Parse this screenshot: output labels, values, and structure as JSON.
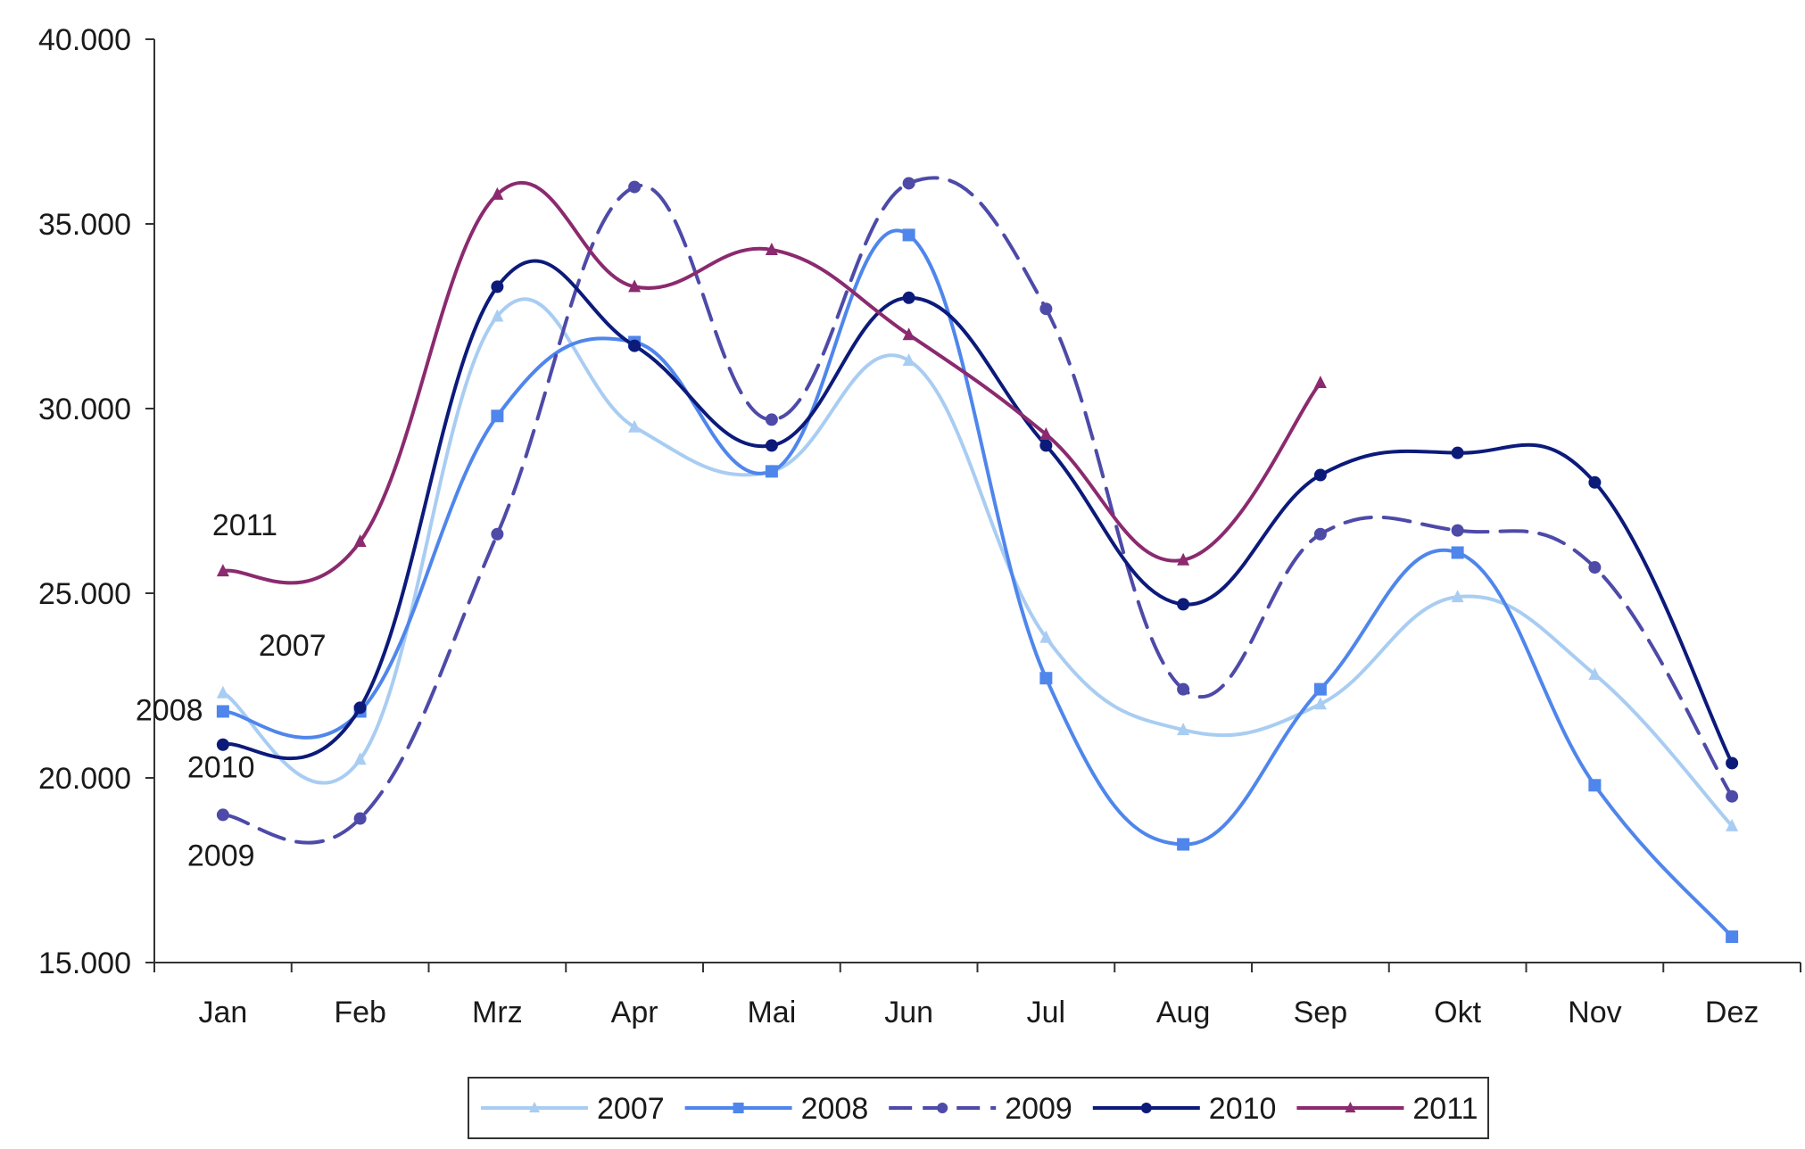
{
  "chart_data": {
    "type": "line",
    "title": "",
    "xlabel": "",
    "ylabel": "",
    "categories": [
      "Jan",
      "Feb",
      "Mrz",
      "Apr",
      "Mai",
      "Jun",
      "Jul",
      "Aug",
      "Sep",
      "Okt",
      "Nov",
      "Dez"
    ],
    "ylim": [
      15000,
      40000
    ],
    "yticks": [
      15000,
      20000,
      25000,
      30000,
      35000,
      40000
    ],
    "ytick_labels": [
      "15.000",
      "20.000",
      "25.000",
      "30.000",
      "35.000",
      "40.000"
    ],
    "grid": false,
    "smooth": true,
    "legend": {
      "position": "bottom",
      "boxed": true
    },
    "series": [
      {
        "name": "2007",
        "color": "#a9cdf2",
        "dash": false,
        "marker": "triangle",
        "tag": "2007",
        "values": [
          22300,
          20500,
          32500,
          29500,
          28300,
          31300,
          23800,
          21300,
          22000,
          24900,
          22800,
          18700
        ]
      },
      {
        "name": "2008",
        "color": "#4f86ec",
        "dash": false,
        "marker": "square",
        "tag": "2008",
        "values": [
          21800,
          21800,
          29800,
          31800,
          28300,
          34700,
          22700,
          18200,
          22400,
          26100,
          19800,
          15700
        ]
      },
      {
        "name": "2009",
        "color": "#4d4aa8",
        "dash": true,
        "marker": "circle",
        "tag": "2009",
        "values": [
          19000,
          18900,
          26600,
          36000,
          29700,
          36100,
          32700,
          22400,
          26600,
          26700,
          25700,
          19500
        ]
      },
      {
        "name": "2010",
        "color": "#0c1a7a",
        "dash": false,
        "marker": "circle",
        "tag": "2010",
        "values": [
          20900,
          21900,
          33300,
          31700,
          29000,
          33000,
          29000,
          24700,
          28200,
          28800,
          28000,
          20400
        ]
      },
      {
        "name": "2011",
        "color": "#8b2a6e",
        "dash": false,
        "marker": "triangle",
        "tag": "2011",
        "values": [
          25600,
          26400,
          35800,
          33300,
          34300,
          32000,
          29300,
          25900,
          30700,
          null,
          null,
          null
        ]
      }
    ]
  }
}
